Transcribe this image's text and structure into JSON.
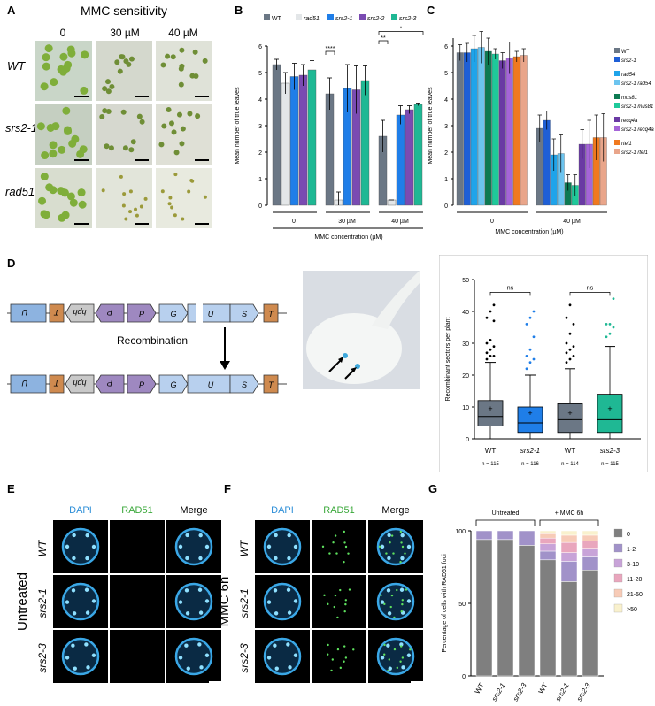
{
  "panels": {
    "A": "A",
    "B": "B",
    "C": "C",
    "D": "D",
    "E": "E",
    "F": "F",
    "G": "G"
  },
  "A": {
    "title": "MMC sensitivity",
    "cols": [
      "0",
      "30 µM",
      "40 µM"
    ],
    "rows": [
      "WT",
      "srs2-1",
      "rad51"
    ]
  },
  "B": {
    "chart_data": {
      "type": "bar",
      "series": [
        {
          "name": "WT",
          "color": "#6b7785",
          "values": [
            5.3,
            4.2,
            2.6
          ],
          "err": [
            0.2,
            0.6,
            0.6
          ]
        },
        {
          "name": "rad51",
          "color": "#e3e6e8",
          "values": [
            4.6,
            0.2,
            0.2
          ],
          "err": [
            0.4,
            0.3,
            0.0
          ]
        },
        {
          "name": "srs2-1",
          "color": "#1f7ee8",
          "values": [
            4.85,
            4.4,
            3.4
          ],
          "err": [
            0.5,
            0.9,
            0.35
          ]
        },
        {
          "name": "srs2-2",
          "color": "#7a4bb2",
          "values": [
            4.9,
            4.35,
            3.6
          ],
          "err": [
            0.4,
            0.9,
            0.15
          ]
        },
        {
          "name": "srs2-3",
          "color": "#1fb894",
          "values": [
            5.1,
            4.7,
            3.8
          ],
          "err": [
            0.35,
            0.55,
            0.05
          ]
        }
      ],
      "categories": [
        "0",
        "30 µM",
        "40 µM"
      ],
      "ylabel": "Mean number of true leaves",
      "xlabel": "MMC concentration (µM)",
      "ylim": [
        0,
        6
      ],
      "yticks": [
        "0",
        "1",
        "2",
        "3",
        "4",
        "5",
        "6"
      ],
      "sig": [
        "****",
        "**",
        "*"
      ]
    }
  },
  "C": {
    "chart_data": {
      "type": "bar",
      "series": [
        {
          "name": "WT",
          "color": "#6b7785",
          "values": [
            5.75,
            2.9
          ],
          "err": [
            0.3,
            0.5
          ]
        },
        {
          "name": "srs2-1",
          "color": "#1f5fd6",
          "values": [
            5.75,
            3.2
          ],
          "err": [
            0.35,
            0.35
          ]
        },
        {
          "name": "rad54",
          "color": "#1fa4ea",
          "values": [
            5.9,
            1.9
          ],
          "err": [
            0.5,
            0.6
          ]
        },
        {
          "name": "srs2-1 rad54",
          "color": "#6cc4ef",
          "values": [
            5.95,
            1.95
          ],
          "err": [
            0.6,
            0.7
          ]
        },
        {
          "name": "mus81",
          "color": "#0d7a52",
          "values": [
            5.8,
            0.85
          ],
          "err": [
            0.5,
            0.3
          ]
        },
        {
          "name": "srs2-1 mus81",
          "color": "#1fc99a",
          "values": [
            5.7,
            0.75
          ],
          "err": [
            0.2,
            0.4
          ]
        },
        {
          "name": "recq4a",
          "color": "#6a3aa4",
          "values": [
            5.45,
            2.3
          ],
          "err": [
            0.3,
            0.55
          ]
        },
        {
          "name": "srs2-1 recq4a",
          "color": "#a565d8",
          "values": [
            5.55,
            2.3
          ],
          "err": [
            0.6,
            0.9
          ]
        },
        {
          "name": "rtel1",
          "color": "#f0791f",
          "values": [
            5.6,
            2.55
          ],
          "err": [
            0.2,
            0.85
          ]
        },
        {
          "name": "srs2-1 rtel1",
          "color": "#e9a58a",
          "values": [
            5.65,
            2.55
          ],
          "err": [
            0.25,
            0.9
          ]
        }
      ],
      "categories": [
        "0",
        "40 µM"
      ],
      "ylabel": "Mean number of true leaves",
      "xlabel": "MMC concentration (µM)",
      "ylim": [
        0,
        6
      ],
      "yticks": [
        "0",
        "1",
        "2",
        "3",
        "4",
        "5",
        "6"
      ]
    }
  },
  "D": {
    "construct_top": [
      "U",
      "T",
      "hph",
      "P",
      "P",
      "G",
      "U",
      "S",
      "T"
    ],
    "construct_bottom": [
      "U",
      "T",
      "hph",
      "P",
      "P",
      "G",
      "U",
      "S",
      "T"
    ],
    "arrow_label": "Recombination",
    "chart_data": {
      "type": "box",
      "ylabel": "Recombinant sectors per plant",
      "ylim": [
        0,
        50
      ],
      "yticks": [
        "0",
        "10",
        "20",
        "30",
        "40",
        "50"
      ],
      "groups": [
        {
          "name": "WT",
          "n": "n = 115",
          "color": "#6b7785",
          "q1": 4,
          "median": 7,
          "q3": 12,
          "whisk_lo": 0,
          "whisk_hi": 24,
          "mean": 9.5,
          "outliers": [
            25,
            26,
            26,
            27,
            28,
            29,
            30,
            31,
            37,
            38,
            40,
            42
          ]
        },
        {
          "name": "srs2-1",
          "n": "n = 116",
          "color": "#1f7ee8",
          "q1": 2,
          "median": 5,
          "q3": 10,
          "whisk_lo": 0,
          "whisk_hi": 20,
          "mean": 8,
          "outliers": [
            22,
            24,
            25,
            26,
            28,
            32,
            36,
            38,
            40
          ]
        },
        {
          "name": "WT",
          "n": "n = 114",
          "color": "#6b7785",
          "q1": 2,
          "median": 6,
          "q3": 11,
          "whisk_lo": 0,
          "whisk_hi": 22,
          "mean": 8,
          "outliers": [
            24,
            25,
            26,
            27,
            28,
            29,
            30,
            33,
            36,
            38,
            42
          ]
        },
        {
          "name": "srs2-3",
          "n": "n = 115",
          "color": "#1fb894",
          "q1": 2,
          "median": 6,
          "q3": 14,
          "whisk_lo": 0,
          "whisk_hi": 29,
          "mean": 9.5,
          "outliers": [
            32,
            33,
            35,
            36,
            36,
            44
          ]
        }
      ],
      "ns": [
        "ns",
        "ns"
      ]
    }
  },
  "E": {
    "cols": [
      "DAPI",
      "RAD51",
      "Merge"
    ],
    "rows": [
      "WT",
      "srs2-1",
      "srs2-3"
    ],
    "side": "Untreated"
  },
  "F": {
    "cols": [
      "DAPI",
      "RAD51",
      "Merge"
    ],
    "rows": [
      "WT",
      "srs2-1",
      "srs2-3"
    ],
    "side": "MMC 6h"
  },
  "G": {
    "chart_data": {
      "type": "stacked-bar",
      "categories": [
        "WT",
        "srs2-1",
        "srs2-3",
        "WT",
        "srs2-1",
        "srs2-3"
      ],
      "groups": [
        "Untreated",
        "+ MMC 6h"
      ],
      "ylabel": "Percentage of cells with RAD51 foci",
      "ylim": [
        0,
        100
      ],
      "yticks": [
        "0",
        "50",
        "100"
      ],
      "series": [
        {
          "name": "0",
          "color": "#7f7f7f",
          "values": [
            94,
            94,
            90,
            80,
            65,
            73
          ]
        },
        {
          "name": "1-2",
          "color": "#a192c9",
          "values": [
            6,
            6,
            10,
            6,
            14,
            9
          ]
        },
        {
          "name": "3-10",
          "color": "#c8a3d8",
          "values": [
            0,
            0,
            0,
            5,
            6,
            6
          ]
        },
        {
          "name": "11-20",
          "color": "#e9a6bd",
          "values": [
            0,
            0,
            0,
            4,
            7,
            5
          ]
        },
        {
          "name": "21-50",
          "color": "#f7cbb7",
          "values": [
            0,
            0,
            0,
            3,
            5,
            4
          ]
        },
        {
          "name": ">50",
          "color": "#f9f1cd",
          "values": [
            0,
            0,
            0,
            2,
            3,
            3
          ]
        }
      ]
    }
  }
}
